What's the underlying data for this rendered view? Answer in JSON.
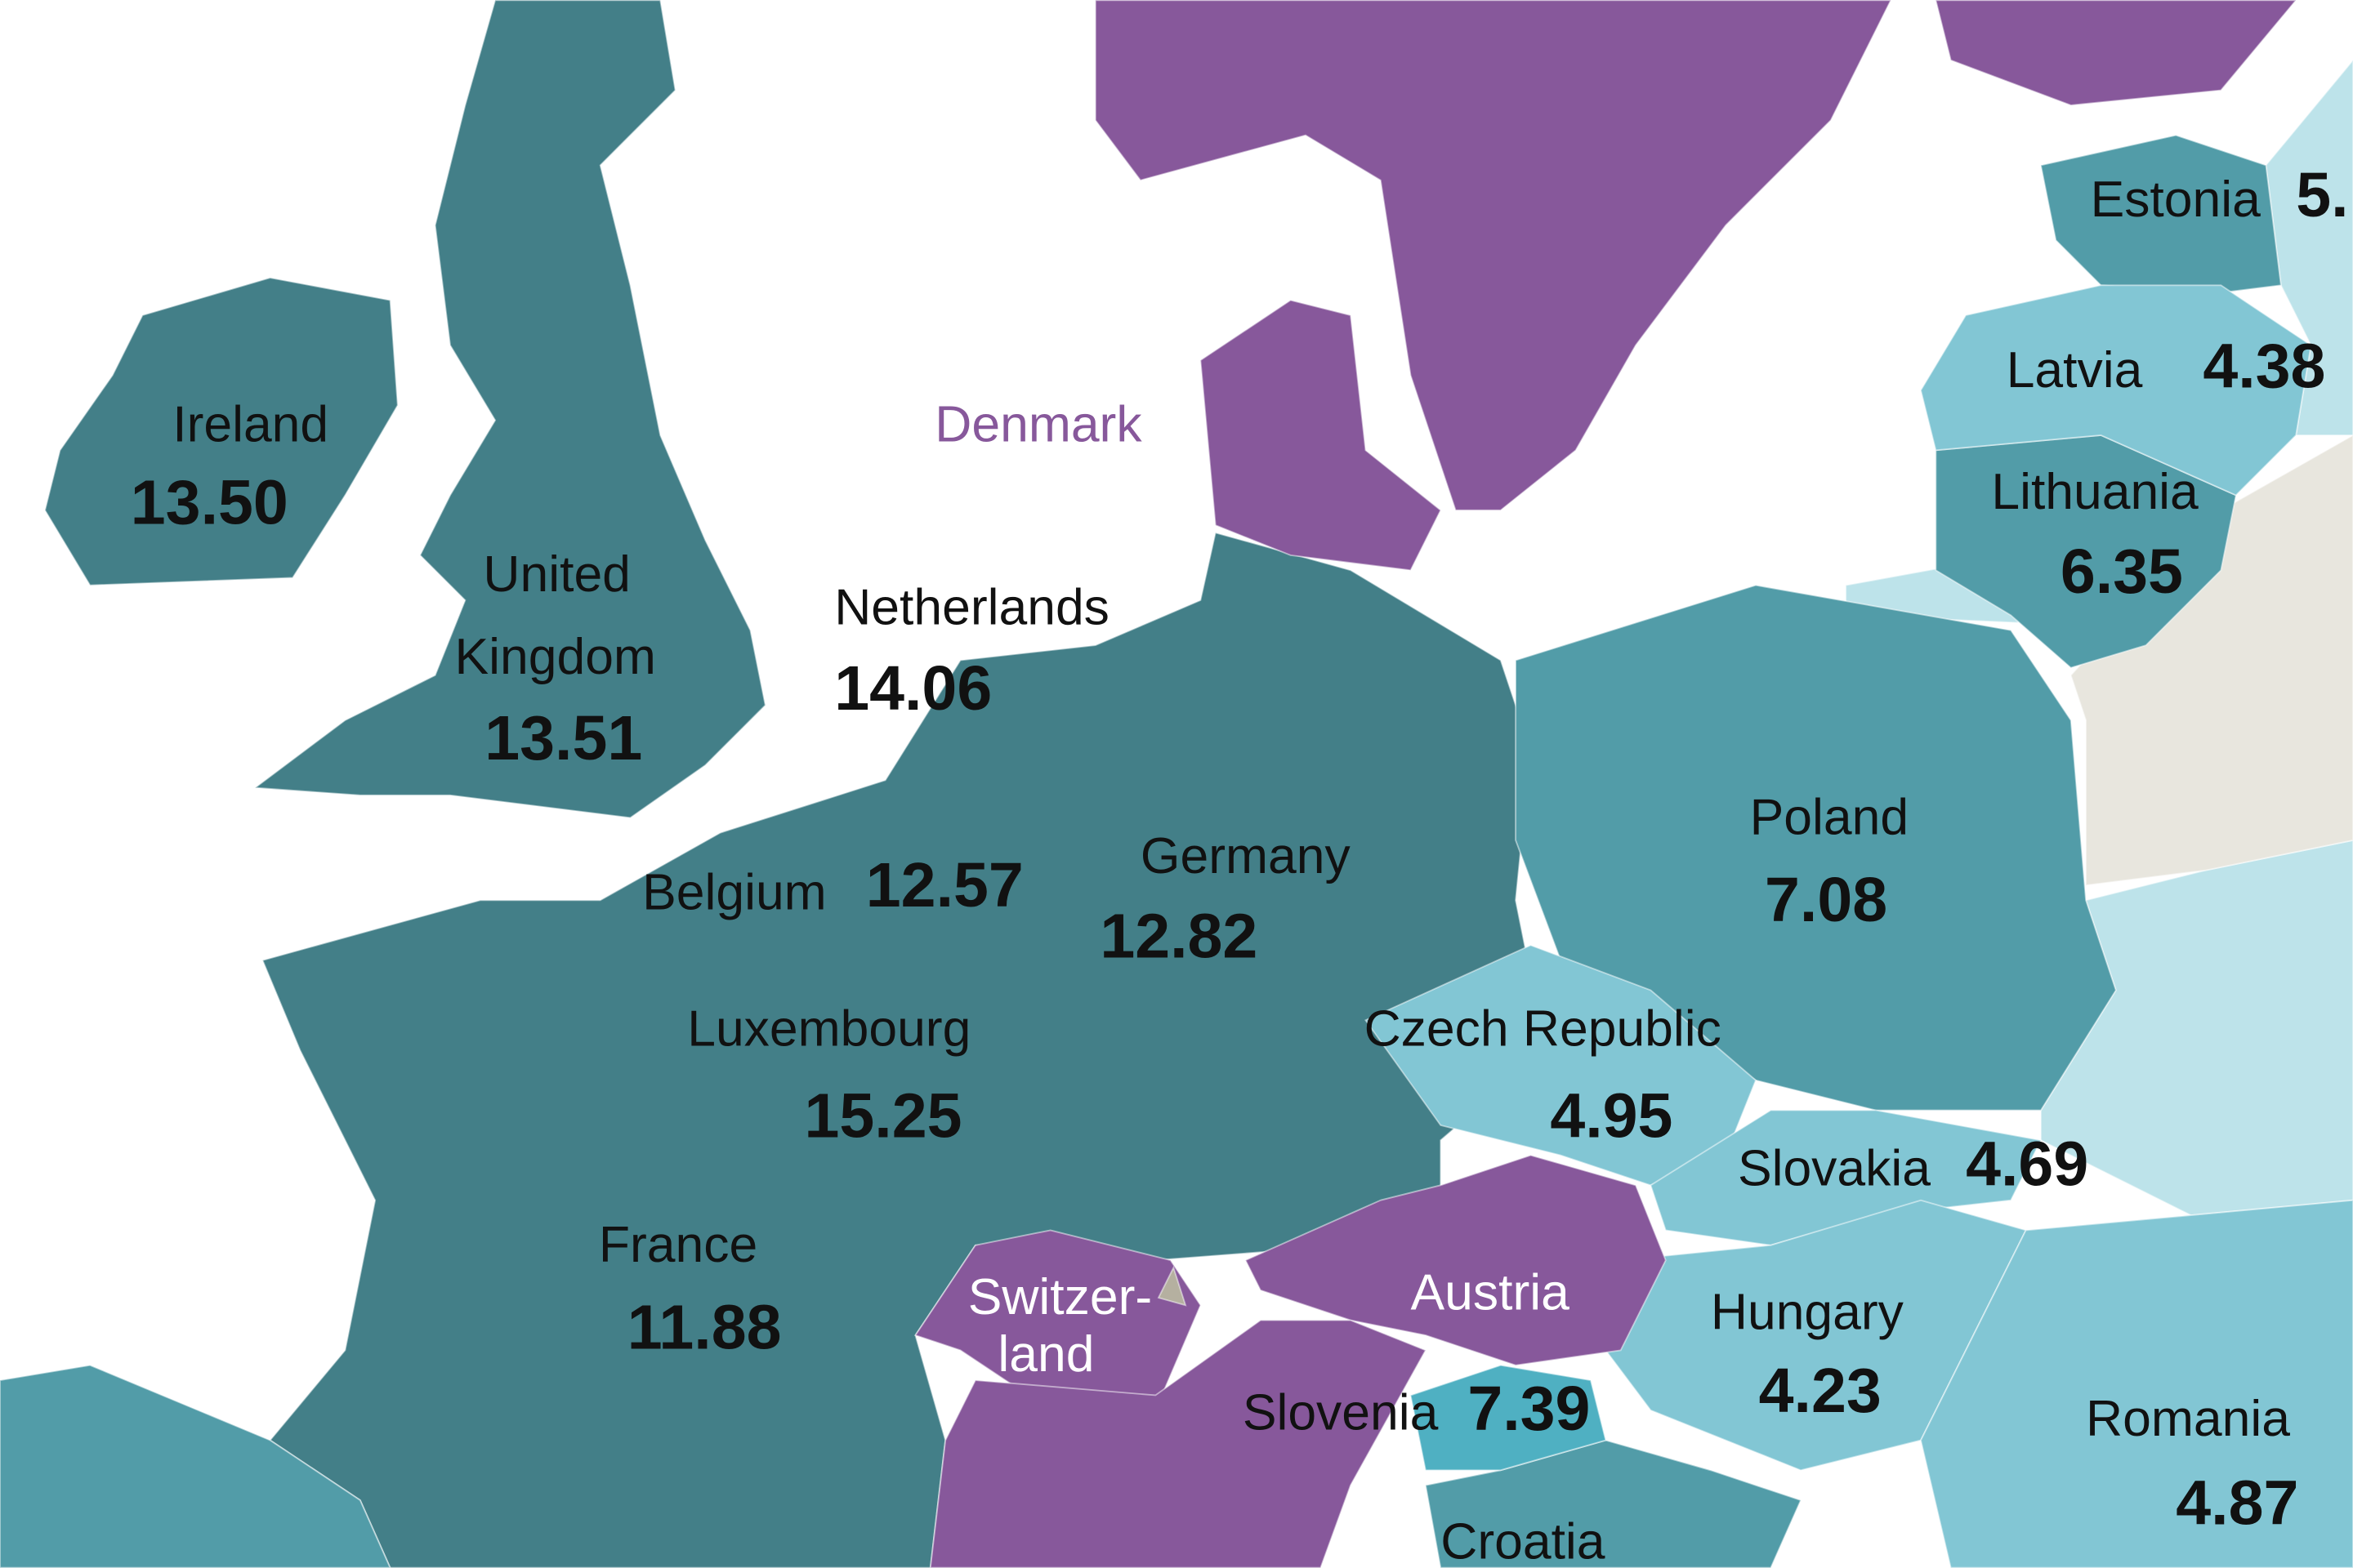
{
  "labels": [
    {
      "lines": [
        "Ireland"
      ],
      "value": "13.50"
    },
    {
      "lines": [
        "United",
        "Kingdom"
      ],
      "value": "13.51"
    },
    {
      "lines": [
        "Netherlands"
      ],
      "value": "14.06"
    },
    {
      "lines": [
        "Belgium"
      ],
      "value": "12.57"
    },
    {
      "lines": [
        "Germany"
      ],
      "value": "12.82"
    },
    {
      "lines": [
        "Luxembourg"
      ],
      "value": "15.25"
    },
    {
      "lines": [
        "France"
      ],
      "value": "11.88"
    },
    {
      "lines": [
        "Denmark"
      ]
    },
    {
      "lines": [
        "Poland"
      ],
      "value": "7.08"
    },
    {
      "lines": [
        "Czech Republic"
      ],
      "value": "4.95"
    },
    {
      "lines": [
        "Slovakia"
      ],
      "value": "4.69"
    },
    {
      "lines": [
        "Hungary"
      ],
      "value": "4.23"
    },
    {
      "lines": [
        "Romania"
      ],
      "value": "4.87"
    },
    {
      "lines": [
        "Austria"
      ]
    },
    {
      "lines": [
        "Switzer-",
        "land"
      ]
    },
    {
      "lines": [
        "Slovenia"
      ],
      "value": "7.39"
    },
    {
      "lines": [
        "Croatia"
      ]
    },
    {
      "lines": [
        "Estonia"
      ],
      "value": "5."
    },
    {
      "lines": [
        "Latvia"
      ],
      "value": "4.38"
    },
    {
      "lines": [
        "Lithuania"
      ],
      "value": "6.35"
    }
  ]
}
